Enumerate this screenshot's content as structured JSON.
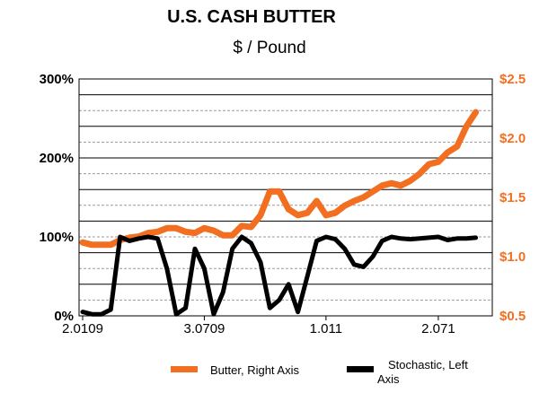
{
  "chart_data": {
    "type": "line",
    "title": "U.S. CASH BUTTER",
    "subtitle": "$ / Pound",
    "left_axis": {
      "ticks": [
        "300%",
        "200%",
        "100%",
        "0%"
      ],
      "range": [
        0,
        300
      ]
    },
    "right_axis": {
      "ticks": [
        "$2.5",
        "$2.0",
        "$1.5",
        "$1.0",
        "$0.5"
      ],
      "range": [
        0.5,
        2.5
      ],
      "color": "#f26f21"
    },
    "x_tick_labels": [
      "2.0109",
      "3.0709",
      "1.011",
      "2.071"
    ],
    "x_tick_index": [
      0,
      13,
      26,
      38
    ],
    "grid": true,
    "legend_placement": "bottom",
    "series": [
      {
        "name": "Butter, Right Axis",
        "axis": "right",
        "color": "#f26f21",
        "values": [
          1.12,
          1.1,
          1.1,
          1.1,
          1.14,
          1.16,
          1.17,
          1.2,
          1.21,
          1.24,
          1.24,
          1.21,
          1.2,
          1.24,
          1.22,
          1.18,
          1.18,
          1.26,
          1.25,
          1.35,
          1.55,
          1.55,
          1.4,
          1.35,
          1.37,
          1.47,
          1.35,
          1.37,
          1.43,
          1.47,
          1.5,
          1.55,
          1.6,
          1.62,
          1.6,
          1.64,
          1.7,
          1.78,
          1.8,
          1.88,
          1.93,
          2.1,
          2.22
        ]
      },
      {
        "name": "Stochastic, Left Axis",
        "axis": "left",
        "color": "#000000",
        "values": [
          5,
          2,
          2,
          8,
          100,
          95,
          98,
          100,
          98,
          60,
          2,
          10,
          85,
          60,
          2,
          30,
          85,
          100,
          92,
          68,
          10,
          20,
          40,
          5,
          50,
          95,
          100,
          97,
          85,
          65,
          62,
          75,
          95,
          100,
          98,
          97,
          98,
          99,
          100,
          96,
          98,
          98,
          99
        ]
      }
    ]
  }
}
